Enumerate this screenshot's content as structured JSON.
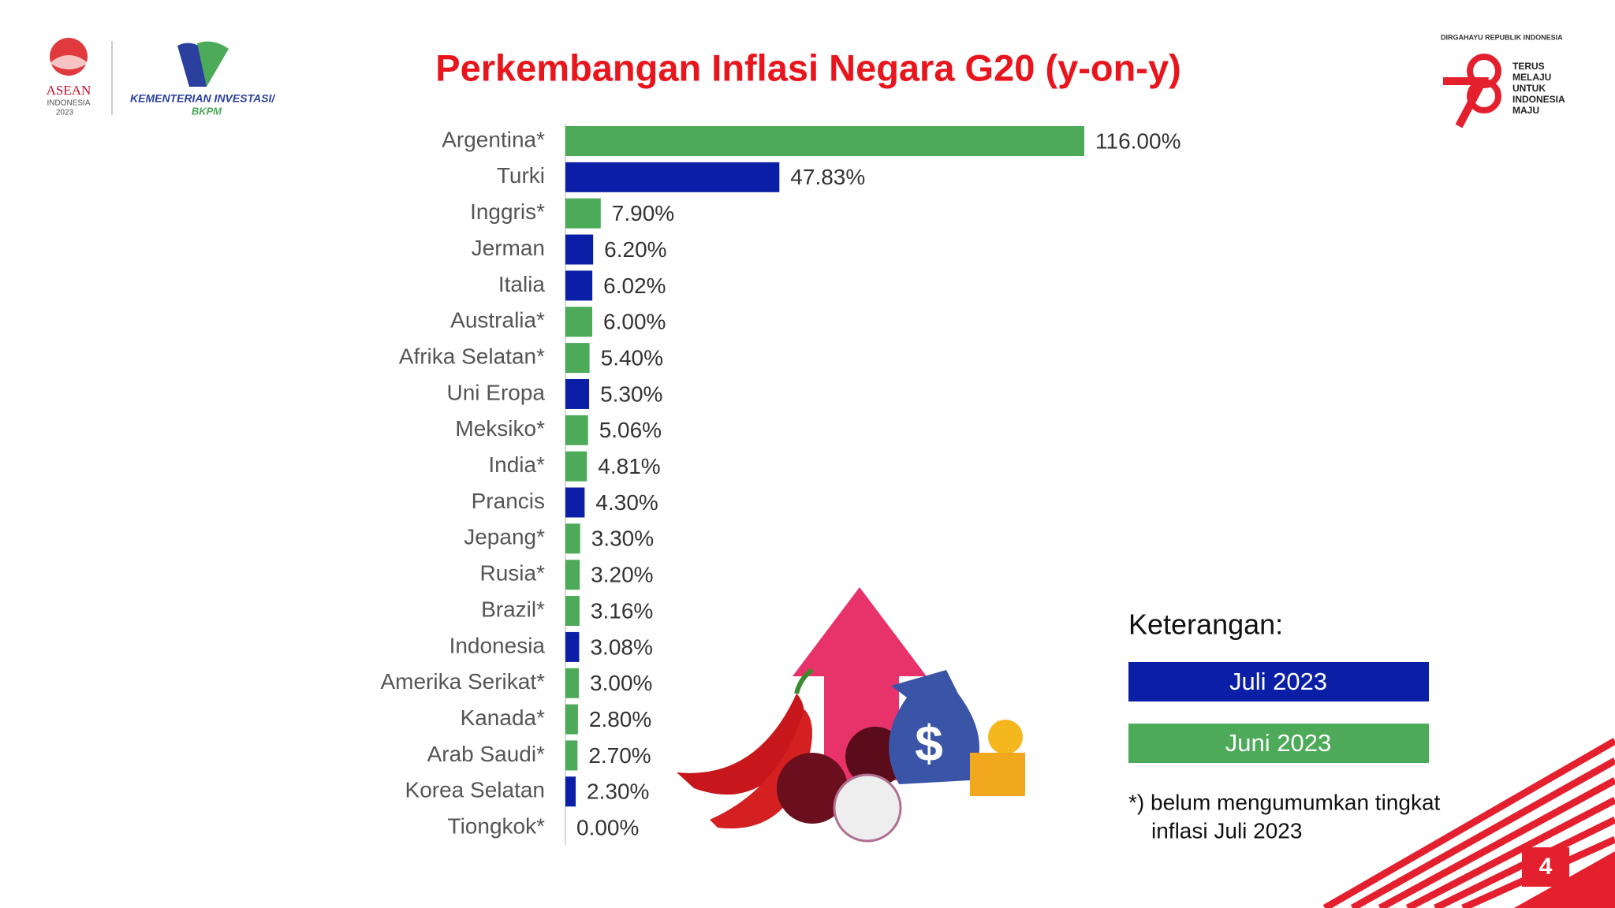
{
  "header": {
    "logo_left": {
      "lines": [
        "ASEAN",
        "INDONESIA",
        "2023"
      ]
    },
    "logo_ministry": {
      "lines": [
        "KEMENTERIAN INVESTASI/",
        "BKPM"
      ]
    },
    "logo_right": {
      "top": "DIRGAHAYU REPUBLIK INDONESIA",
      "lines": [
        "TERUS",
        "MELAJU",
        "UNTUK",
        "INDONESIA",
        "MAJU"
      ]
    }
  },
  "chart_data": {
    "type": "bar",
    "orientation": "horizontal",
    "title": "Perkembangan Inflasi Negara G20 (y-on-y)",
    "categories": [
      "Argentina*",
      "Turki",
      "Inggris*",
      "Jerman",
      "Italia",
      "Australia*",
      "Afrika Selatan*",
      "Uni Eropa",
      "Meksiko*",
      "India*",
      "Prancis",
      "Jepang*",
      "Rusia*",
      "Brazil*",
      "Indonesia",
      "Amerika Serikat*",
      "Kanada*",
      "Arab Saudi*",
      "Korea Selatan",
      "Tiongkok*"
    ],
    "series": [
      {
        "name": "Juli 2023",
        "color": "#0a1fa6",
        "values": [
          null,
          47.83,
          null,
          6.2,
          6.02,
          null,
          null,
          5.3,
          null,
          null,
          4.3,
          null,
          null,
          null,
          3.08,
          null,
          null,
          null,
          2.3,
          null
        ],
        "value_labels": [
          null,
          "47.83%",
          null,
          "6.20%",
          "6.02%",
          null,
          null,
          "5.30%",
          null,
          null,
          "4.30%",
          null,
          null,
          null,
          "3.08%",
          null,
          null,
          null,
          "2.30%",
          null
        ]
      },
      {
        "name": "Juni 2023",
        "color": "#4caa58",
        "values": [
          116,
          null,
          7.9,
          null,
          null,
          6,
          5.4,
          null,
          5.06,
          4.81,
          null,
          3.3,
          3.2,
          3.16,
          null,
          3,
          2.8,
          2.7,
          null,
          0
        ],
        "value_labels": [
          "116.00%",
          null,
          "7.90%",
          null,
          null,
          "6.00%",
          "5.40%",
          null,
          "5.06%",
          "4.81%",
          null,
          "3.30%",
          "3.20%",
          "3.16%",
          null,
          "3.00%",
          "2.80%",
          "2.70%",
          null,
          "0.00%"
        ]
      }
    ],
    "legend_title": "Keterangan:",
    "footnote": [
      "*) belum mengumumkan tingkat",
      "inflasi Juli 2023"
    ]
  },
  "page_number": "4"
}
